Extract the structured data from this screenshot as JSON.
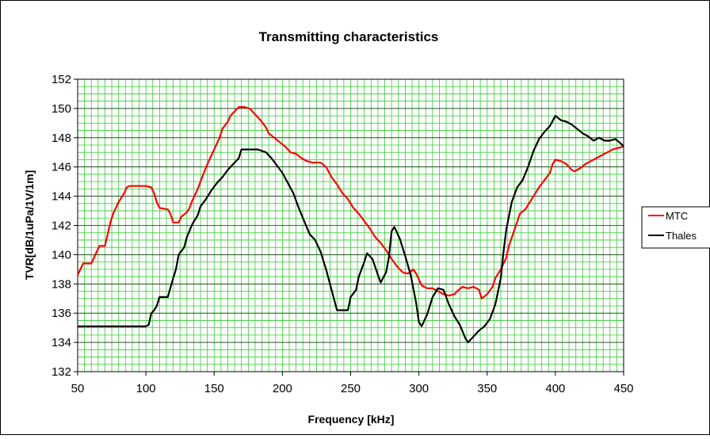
{
  "chart_data": {
    "type": "line",
    "title": "Transmitting characteristics",
    "xlabel": "Frequency [kHz]",
    "ylabel": "TVR[dB/1uPa/1V/1m]",
    "xlim": [
      50,
      450
    ],
    "ylim": [
      132,
      152
    ],
    "x_ticks": [
      50,
      100,
      150,
      200,
      250,
      300,
      350,
      400,
      450
    ],
    "y_ticks": [
      132,
      134,
      136,
      138,
      140,
      142,
      144,
      146,
      148,
      150,
      152
    ],
    "x_minor_step": 5,
    "y_minor_step": 0.5,
    "grid": true,
    "grid_color": "#33cc33",
    "legend_position": "right",
    "series": [
      {
        "name": "MTC",
        "color": "#ff0000",
        "points": [
          [
            50,
            138.6
          ],
          [
            52,
            139
          ],
          [
            54,
            139.4
          ],
          [
            56,
            139.4
          ],
          [
            60,
            139.4
          ],
          [
            62,
            139.8
          ],
          [
            64,
            140.2
          ],
          [
            66,
            140.6
          ],
          [
            70,
            140.6
          ],
          [
            72,
            141.4
          ],
          [
            74,
            142.2
          ],
          [
            76,
            142.8
          ],
          [
            78,
            143.2
          ],
          [
            80,
            143.6
          ],
          [
            84,
            144.2
          ],
          [
            86,
            144.6
          ],
          [
            88,
            144.7
          ],
          [
            100,
            144.7
          ],
          [
            104,
            144.6
          ],
          [
            106,
            144.2
          ],
          [
            108,
            143.6
          ],
          [
            110,
            143.2
          ],
          [
            116,
            143.1
          ],
          [
            118,
            142.8
          ],
          [
            120,
            142.2
          ],
          [
            124,
            142.2
          ],
          [
            126,
            142.6
          ],
          [
            130,
            142.9
          ],
          [
            132,
            143.2
          ],
          [
            134,
            143.7
          ],
          [
            138,
            144.5
          ],
          [
            140,
            145.0
          ],
          [
            142,
            145.5
          ],
          [
            146,
            146.4
          ],
          [
            150,
            147.2
          ],
          [
            154,
            148.0
          ],
          [
            156,
            148.6
          ],
          [
            160,
            149.1
          ],
          [
            162,
            149.5
          ],
          [
            166,
            149.9
          ],
          [
            168,
            150.1
          ],
          [
            172,
            150.1
          ],
          [
            176,
            150.0
          ],
          [
            180,
            149.6
          ],
          [
            184,
            149.2
          ],
          [
            188,
            148.7
          ],
          [
            190,
            148.3
          ],
          [
            194,
            148.0
          ],
          [
            198,
            147.7
          ],
          [
            202,
            147.4
          ],
          [
            206,
            147.0
          ],
          [
            210,
            146.9
          ],
          [
            214,
            146.6
          ],
          [
            218,
            146.4
          ],
          [
            222,
            146.3
          ],
          [
            228,
            146.3
          ],
          [
            232,
            146.0
          ],
          [
            236,
            145.3
          ],
          [
            240,
            144.8
          ],
          [
            244,
            144.2
          ],
          [
            248,
            143.8
          ],
          [
            252,
            143.2
          ],
          [
            256,
            142.8
          ],
          [
            260,
            142.3
          ],
          [
            264,
            141.8
          ],
          [
            268,
            141.2
          ],
          [
            272,
            140.8
          ],
          [
            276,
            140.3
          ],
          [
            280,
            139.7
          ],
          [
            284,
            139.2
          ],
          [
            288,
            138.8
          ],
          [
            292,
            138.7
          ],
          [
            296,
            139.0
          ],
          [
            298,
            138.7
          ],
          [
            302,
            137.9
          ],
          [
            306,
            137.7
          ],
          [
            310,
            137.7
          ],
          [
            314,
            137.5
          ],
          [
            318,
            137.3
          ],
          [
            322,
            137.2
          ],
          [
            326,
            137.3
          ],
          [
            328,
            137.5
          ],
          [
            332,
            137.8
          ],
          [
            336,
            137.7
          ],
          [
            340,
            137.8
          ],
          [
            344,
            137.6
          ],
          [
            346,
            137.0
          ],
          [
            350,
            137.3
          ],
          [
            354,
            137.8
          ],
          [
            356,
            138.4
          ],
          [
            360,
            139.0
          ],
          [
            364,
            139.8
          ],
          [
            366,
            140.6
          ],
          [
            370,
            141.7
          ],
          [
            374,
            142.8
          ],
          [
            378,
            143.1
          ],
          [
            380,
            143.4
          ],
          [
            384,
            144.0
          ],
          [
            388,
            144.6
          ],
          [
            392,
            145.1
          ],
          [
            396,
            145.6
          ],
          [
            398,
            146.2
          ],
          [
            400,
            146.5
          ],
          [
            404,
            146.4
          ],
          [
            408,
            146.2
          ],
          [
            412,
            145.8
          ],
          [
            414,
            145.7
          ],
          [
            418,
            145.9
          ],
          [
            422,
            146.2
          ],
          [
            426,
            146.4
          ],
          [
            430,
            146.6
          ],
          [
            434,
            146.8
          ],
          [
            438,
            147.0
          ],
          [
            442,
            147.2
          ],
          [
            446,
            147.3
          ],
          [
            450,
            147.4
          ]
        ]
      },
      {
        "name": "Thales",
        "color": "#000000",
        "points": [
          [
            50,
            135.1
          ],
          [
            100,
            135.1
          ],
          [
            102,
            135.2
          ],
          [
            104,
            136.0
          ],
          [
            106,
            136.2
          ],
          [
            108,
            136.5
          ],
          [
            110,
            137.1
          ],
          [
            116,
            137.1
          ],
          [
            120,
            138.4
          ],
          [
            122,
            139.0
          ],
          [
            124,
            140.0
          ],
          [
            128,
            140.5
          ],
          [
            130,
            141.2
          ],
          [
            134,
            142.1
          ],
          [
            138,
            142.7
          ],
          [
            140,
            143.3
          ],
          [
            144,
            143.8
          ],
          [
            148,
            144.4
          ],
          [
            152,
            144.9
          ],
          [
            156,
            145.3
          ],
          [
            160,
            145.8
          ],
          [
            164,
            146.2
          ],
          [
            168,
            146.6
          ],
          [
            170,
            147.2
          ],
          [
            182,
            147.2
          ],
          [
            188,
            147.0
          ],
          [
            192,
            146.6
          ],
          [
            196,
            146.1
          ],
          [
            200,
            145.6
          ],
          [
            204,
            144.9
          ],
          [
            208,
            144.2
          ],
          [
            212,
            143.2
          ],
          [
            216,
            142.3
          ],
          [
            220,
            141.4
          ],
          [
            224,
            141.0
          ],
          [
            228,
            140.2
          ],
          [
            232,
            139.0
          ],
          [
            236,
            137.6
          ],
          [
            240,
            136.2
          ],
          [
            248,
            136.2
          ],
          [
            250,
            137.1
          ],
          [
            254,
            137.6
          ],
          [
            256,
            138.5
          ],
          [
            260,
            139.5
          ],
          [
            262,
            140.1
          ],
          [
            266,
            139.7
          ],
          [
            270,
            138.6
          ],
          [
            272,
            138.1
          ],
          [
            276,
            138.8
          ],
          [
            278,
            139.8
          ],
          [
            280,
            141.6
          ],
          [
            282,
            141.9
          ],
          [
            286,
            141.1
          ],
          [
            290,
            139.9
          ],
          [
            294,
            138.6
          ],
          [
            298,
            136.7
          ],
          [
            300,
            135.4
          ],
          [
            302,
            135.1
          ],
          [
            306,
            135.9
          ],
          [
            310,
            137.1
          ],
          [
            314,
            137.7
          ],
          [
            318,
            137.6
          ],
          [
            322,
            136.6
          ],
          [
            326,
            135.8
          ],
          [
            330,
            135.2
          ],
          [
            334,
            134.3
          ],
          [
            336,
            134.0
          ],
          [
            340,
            134.4
          ],
          [
            344,
            134.8
          ],
          [
            348,
            135.1
          ],
          [
            352,
            135.6
          ],
          [
            356,
            136.6
          ],
          [
            360,
            138.4
          ],
          [
            362,
            140.2
          ],
          [
            364,
            141.7
          ],
          [
            368,
            143.6
          ],
          [
            372,
            144.6
          ],
          [
            376,
            145.1
          ],
          [
            380,
            146.0
          ],
          [
            384,
            147.1
          ],
          [
            388,
            147.9
          ],
          [
            392,
            148.4
          ],
          [
            396,
            148.8
          ],
          [
            400,
            149.5
          ],
          [
            404,
            149.2
          ],
          [
            408,
            149.1
          ],
          [
            412,
            148.9
          ],
          [
            416,
            148.6
          ],
          [
            420,
            148.3
          ],
          [
            424,
            148.1
          ],
          [
            428,
            147.8
          ],
          [
            432,
            148.0
          ],
          [
            436,
            147.8
          ],
          [
            440,
            147.8
          ],
          [
            444,
            147.9
          ],
          [
            448,
            147.6
          ],
          [
            450,
            147.4
          ]
        ]
      }
    ]
  }
}
